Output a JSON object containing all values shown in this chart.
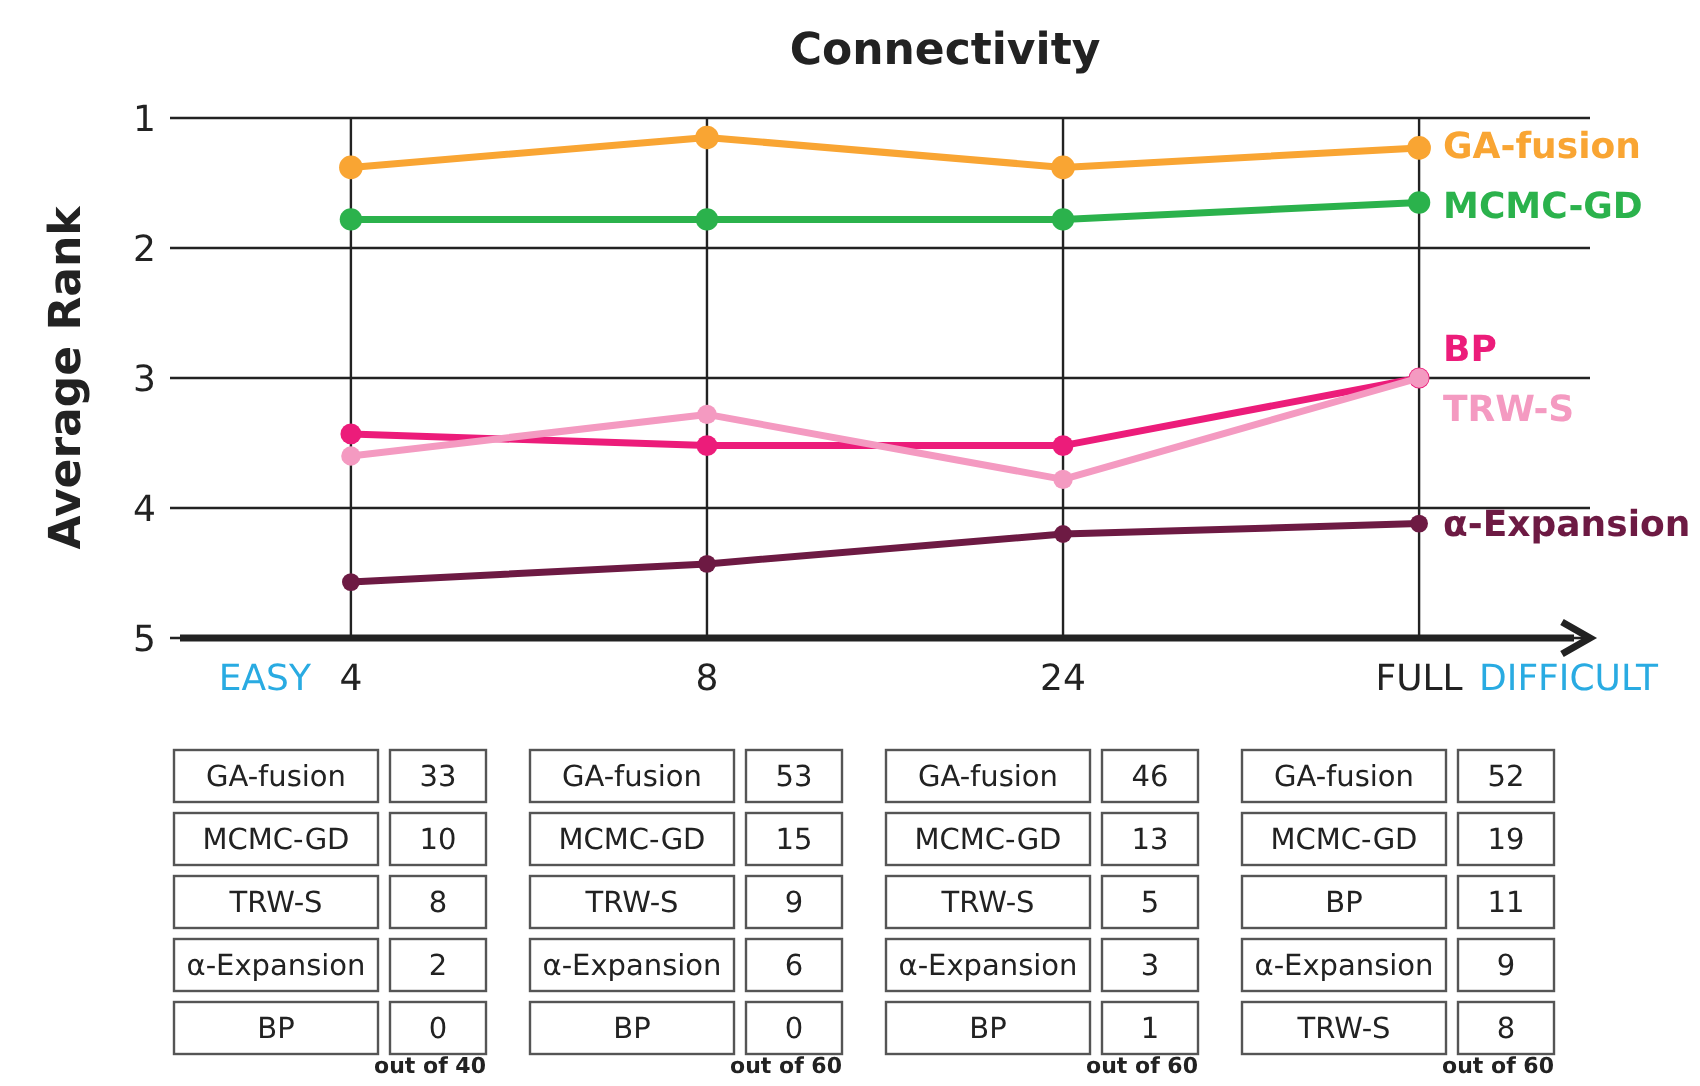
{
  "chart_data": [
    {
      "type": "line",
      "title": "Connectivity",
      "ylabel": "Average Rank",
      "categories": [
        "4",
        "8",
        "24",
        "FULL"
      ],
      "ylim": [
        5,
        1
      ],
      "yticks": [
        1,
        2,
        3,
        4,
        5
      ],
      "grid": true,
      "marker": "circle",
      "line_style": "solid",
      "annotations": [
        "EASY",
        "DIFFICULT"
      ],
      "series": [
        {
          "name": "GA-fusion",
          "color": "#f9a533",
          "values": [
            1.38,
            1.15,
            1.38,
            1.23
          ]
        },
        {
          "name": "MCMC-GD",
          "color": "#2bb24c",
          "values": [
            1.78,
            1.78,
            1.78,
            1.65
          ]
        },
        {
          "name": "BP",
          "color": "#ec1c7a",
          "values": [
            3.43,
            3.52,
            3.52,
            3.0
          ]
        },
        {
          "name": "TRW-S",
          "color": "#f49ac1",
          "values": [
            3.6,
            3.28,
            3.78,
            3.0
          ]
        },
        {
          "name": "α-Expansion",
          "color": "#6d1a43",
          "values": [
            4.57,
            4.43,
            4.2,
            4.12
          ]
        }
      ]
    },
    {
      "type": "other",
      "categories": [
        "GA-fusion",
        "MCMC-GD",
        "TRW-S",
        "α-Expansion",
        "BP"
      ],
      "values": [
        33,
        10,
        8,
        2,
        0
      ],
      "data_labels": true,
      "annotations": [
        "out of 40"
      ]
    },
    {
      "type": "other",
      "categories": [
        "GA-fusion",
        "MCMC-GD",
        "TRW-S",
        "α-Expansion",
        "BP"
      ],
      "values": [
        53,
        15,
        9,
        6,
        0
      ],
      "data_labels": true,
      "annotations": [
        "out of 60"
      ]
    },
    {
      "type": "other",
      "categories": [
        "GA-fusion",
        "MCMC-GD",
        "TRW-S",
        "α-Expansion",
        "BP"
      ],
      "values": [
        46,
        13,
        5,
        3,
        1
      ],
      "data_labels": true,
      "annotations": [
        "out of 60"
      ]
    },
    {
      "type": "other",
      "categories": [
        "GA-fusion",
        "MCMC-GD",
        "BP",
        "α-Expansion",
        "TRW-S"
      ],
      "values": [
        52,
        19,
        11,
        9,
        8
      ],
      "data_labels": true,
      "annotations": [
        "out of 60"
      ]
    }
  ]
}
